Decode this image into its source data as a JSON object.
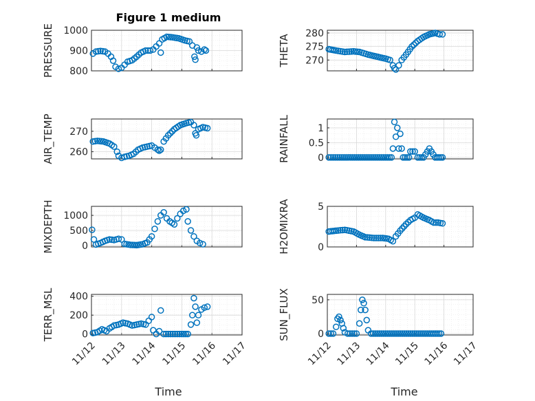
{
  "figure": {
    "title": "Figure 1 medium"
  },
  "x_tick_labels": [
    "11/12",
    "11/13",
    "11/14",
    "11/15",
    "11/16",
    "11/17"
  ],
  "x_label": "Time",
  "chart_data": [
    {
      "type": "scatter",
      "name": "PRESSURE",
      "ylabel": "PRESSURE",
      "ylim": [
        800,
        1000
      ],
      "yticks": [
        800,
        900,
        1000
      ],
      "yticklabels": [
        "800",
        "900",
        "1000"
      ],
      "xlim": [
        0,
        5
      ],
      "points": [
        [
          0.05,
          885
        ],
        [
          0.15,
          895
        ],
        [
          0.3,
          898
        ],
        [
          0.45,
          895
        ],
        [
          0.55,
          885
        ],
        [
          0.65,
          870
        ],
        [
          0.72,
          850
        ],
        [
          0.8,
          820
        ],
        [
          0.9,
          810
        ],
        [
          1.0,
          815
        ],
        [
          1.1,
          830
        ],
        [
          1.2,
          845
        ],
        [
          1.35,
          852
        ],
        [
          1.5,
          870
        ],
        [
          1.65,
          890
        ],
        [
          1.8,
          900
        ],
        [
          1.95,
          900
        ],
        [
          2.05,
          905
        ],
        [
          2.15,
          920
        ],
        [
          2.25,
          935
        ],
        [
          2.3,
          890
        ],
        [
          2.35,
          955
        ],
        [
          2.5,
          968
        ],
        [
          2.7,
          965
        ],
        [
          2.9,
          960
        ],
        [
          3.1,
          950
        ],
        [
          3.25,
          945
        ],
        [
          3.35,
          925
        ],
        [
          3.42,
          870
        ],
        [
          3.45,
          855
        ],
        [
          3.5,
          915
        ],
        [
          3.55,
          900
        ],
        [
          3.65,
          895
        ],
        [
          3.75,
          905
        ],
        [
          3.8,
          900
        ]
      ]
    },
    {
      "type": "scatter",
      "name": "THETA",
      "ylabel": "THETA",
      "ylim": [
        266,
        281
      ],
      "yticks": [
        270,
        275,
        280
      ],
      "yticklabels": [
        "270",
        "275",
        "280"
      ],
      "xlim": [
        0,
        5
      ],
      "points": [
        [
          0.05,
          274
        ],
        [
          0.3,
          273.5
        ],
        [
          0.6,
          273
        ],
        [
          0.9,
          273.2
        ],
        [
          1.1,
          273
        ],
        [
          1.25,
          272.5
        ],
        [
          1.4,
          272
        ],
        [
          1.6,
          271.5
        ],
        [
          1.8,
          271
        ],
        [
          2.0,
          270.5
        ],
        [
          2.15,
          270
        ],
        [
          2.25,
          268
        ],
        [
          2.3,
          267
        ],
        [
          2.35,
          266.5
        ],
        [
          2.45,
          268
        ],
        [
          2.55,
          270
        ],
        [
          2.7,
          272
        ],
        [
          2.9,
          275
        ],
        [
          3.1,
          277
        ],
        [
          3.3,
          278.5
        ],
        [
          3.5,
          279.5
        ],
        [
          3.7,
          280
        ],
        [
          3.85,
          279.5
        ],
        [
          3.95,
          279.5
        ]
      ]
    },
    {
      "type": "scatter",
      "name": "AIR_TEMP",
      "ylabel": "AIR_TEMP",
      "ylim": [
        256.5,
        276
      ],
      "yticks": [
        260,
        270
      ],
      "yticklabels": [
        "260",
        "270"
      ],
      "xlim": [
        0,
        5
      ],
      "points": [
        [
          0.05,
          265
        ],
        [
          0.2,
          265.3
        ],
        [
          0.4,
          265
        ],
        [
          0.6,
          264
        ],
        [
          0.75,
          262.5
        ],
        [
          0.85,
          260
        ],
        [
          0.9,
          258
        ],
        [
          1.0,
          257
        ],
        [
          1.1,
          257.5
        ],
        [
          1.25,
          258
        ],
        [
          1.4,
          259
        ],
        [
          1.55,
          261
        ],
        [
          1.7,
          262
        ],
        [
          1.85,
          262.5
        ],
        [
          2.0,
          263
        ],
        [
          2.1,
          262
        ],
        [
          2.2,
          261
        ],
        [
          2.25,
          260.5
        ],
        [
          2.3,
          261
        ],
        [
          2.4,
          265
        ],
        [
          2.55,
          268
        ],
        [
          2.75,
          271
        ],
        [
          2.95,
          273
        ],
        [
          3.15,
          274
        ],
        [
          3.3,
          274.5
        ],
        [
          3.4,
          273
        ],
        [
          3.45,
          269
        ],
        [
          3.48,
          268
        ],
        [
          3.55,
          271
        ],
        [
          3.7,
          272
        ],
        [
          3.85,
          271.5
        ]
      ]
    },
    {
      "type": "scatter",
      "name": "RAINFALL",
      "ylabel": "RAINFALL",
      "ylim": [
        -0.05,
        1.3
      ],
      "yticks": [
        0,
        0.5,
        1
      ],
      "yticklabels": [
        "0",
        "0.5",
        "1"
      ],
      "xlim": [
        0,
        5
      ],
      "points": [
        [
          0.05,
          0
        ],
        [
          0.5,
          0
        ],
        [
          1.0,
          0
        ],
        [
          1.5,
          0
        ],
        [
          2.0,
          0
        ],
        [
          2.2,
          0
        ],
        [
          2.25,
          0.3
        ],
        [
          2.3,
          1.2
        ],
        [
          2.35,
          0.7
        ],
        [
          2.4,
          1.0
        ],
        [
          2.45,
          0.3
        ],
        [
          2.5,
          0.8
        ],
        [
          2.55,
          0.3
        ],
        [
          2.6,
          0
        ],
        [
          2.8,
          0
        ],
        [
          2.85,
          0.2
        ],
        [
          3.0,
          0.2
        ],
        [
          3.1,
          0
        ],
        [
          3.3,
          0
        ],
        [
          3.5,
          0.3
        ],
        [
          3.7,
          0
        ],
        [
          3.95,
          0
        ]
      ]
    },
    {
      "type": "scatter",
      "name": "MIXDEPTH",
      "ylabel": "MIXDEPTH",
      "ylim": [
        -50,
        1300
      ],
      "yticks": [
        0,
        500,
        1000
      ],
      "yticklabels": [
        "0",
        "500",
        "1000"
      ],
      "xlim": [
        0,
        5
      ],
      "points": [
        [
          0.02,
          520
        ],
        [
          0.08,
          200
        ],
        [
          0.15,
          30
        ],
        [
          0.3,
          80
        ],
        [
          0.45,
          150
        ],
        [
          0.6,
          200
        ],
        [
          0.75,
          180
        ],
        [
          0.9,
          220
        ],
        [
          1.0,
          200
        ],
        [
          1.1,
          50
        ],
        [
          1.3,
          20
        ],
        [
          1.5,
          10
        ],
        [
          1.7,
          40
        ],
        [
          1.85,
          100
        ],
        [
          2.0,
          300
        ],
        [
          2.1,
          550
        ],
        [
          2.2,
          800
        ],
        [
          2.3,
          1000
        ],
        [
          2.4,
          1100
        ],
        [
          2.5,
          900
        ],
        [
          2.6,
          800
        ],
        [
          2.75,
          700
        ],
        [
          2.85,
          900
        ],
        [
          2.95,
          1050
        ],
        [
          3.05,
          1150
        ],
        [
          3.15,
          1200
        ],
        [
          3.2,
          800
        ],
        [
          3.3,
          500
        ],
        [
          3.4,
          300
        ],
        [
          3.5,
          150
        ],
        [
          3.6,
          80
        ],
        [
          3.7,
          40
        ]
      ]
    },
    {
      "type": "scatter",
      "name": "H2OMIXRA",
      "ylabel": "H2OMIXRA",
      "ylim": [
        0,
        5
      ],
      "yticks": [
        0,
        5
      ],
      "yticklabels": [
        "0",
        "5"
      ],
      "xlim": [
        0,
        5
      ],
      "points": [
        [
          0.05,
          1.9
        ],
        [
          0.3,
          2.0
        ],
        [
          0.6,
          2.1
        ],
        [
          0.9,
          1.9
        ],
        [
          1.1,
          1.5
        ],
        [
          1.3,
          1.2
        ],
        [
          1.6,
          1.1
        ],
        [
          1.9,
          1.1
        ],
        [
          2.1,
          1.0
        ],
        [
          2.25,
          0.7
        ],
        [
          2.35,
          1.3
        ],
        [
          2.5,
          2.0
        ],
        [
          2.7,
          2.8
        ],
        [
          2.85,
          3.3
        ],
        [
          3.0,
          3.6
        ],
        [
          3.1,
          4.0
        ],
        [
          3.3,
          3.6
        ],
        [
          3.5,
          3.3
        ],
        [
          3.65,
          3.0
        ],
        [
          3.8,
          3.0
        ],
        [
          3.95,
          2.9
        ]
      ]
    },
    {
      "type": "scatter",
      "name": "TERR_MSL",
      "ylabel": "TERR_MSL",
      "ylim": [
        -10,
        420
      ],
      "yticks": [
        0,
        200,
        400
      ],
      "yticklabels": [
        "0",
        "200",
        "400"
      ],
      "xlim": [
        0,
        5
      ],
      "points": [
        [
          0.05,
          10
        ],
        [
          0.2,
          20
        ],
        [
          0.35,
          50
        ],
        [
          0.5,
          30
        ],
        [
          0.6,
          60
        ],
        [
          0.75,
          90
        ],
        [
          0.9,
          100
        ],
        [
          1.05,
          120
        ],
        [
          1.2,
          110
        ],
        [
          1.35,
          90
        ],
        [
          1.5,
          100
        ],
        [
          1.65,
          110
        ],
        [
          1.8,
          100
        ],
        [
          1.9,
          140
        ],
        [
          2.0,
          180
        ],
        [
          2.05,
          40
        ],
        [
          2.15,
          0
        ],
        [
          2.25,
          30
        ],
        [
          2.3,
          250
        ],
        [
          2.4,
          0
        ],
        [
          2.7,
          0
        ],
        [
          3.0,
          0
        ],
        [
          3.2,
          0
        ],
        [
          3.3,
          100
        ],
        [
          3.35,
          200
        ],
        [
          3.4,
          380
        ],
        [
          3.45,
          290
        ],
        [
          3.5,
          120
        ],
        [
          3.55,
          200
        ],
        [
          3.65,
          260
        ],
        [
          3.75,
          280
        ],
        [
          3.85,
          290
        ]
      ]
    },
    {
      "type": "scatter",
      "name": "SUN_FLUX",
      "ylabel": "SUN_FLUX",
      "ylim": [
        -2,
        58
      ],
      "yticks": [
        0,
        50
      ],
      "yticklabels": [
        "0",
        "50"
      ],
      "xlim": [
        0,
        5
      ],
      "points": [
        [
          0.05,
          0
        ],
        [
          0.2,
          0
        ],
        [
          0.3,
          10
        ],
        [
          0.35,
          22
        ],
        [
          0.4,
          25
        ],
        [
          0.45,
          20
        ],
        [
          0.5,
          15
        ],
        [
          0.55,
          8
        ],
        [
          0.6,
          2
        ],
        [
          0.7,
          0
        ],
        [
          1.0,
          0
        ],
        [
          1.1,
          15
        ],
        [
          1.15,
          35
        ],
        [
          1.2,
          50
        ],
        [
          1.25,
          45
        ],
        [
          1.3,
          35
        ],
        [
          1.35,
          20
        ],
        [
          1.4,
          5
        ],
        [
          1.5,
          0
        ],
        [
          2.0,
          0
        ],
        [
          2.5,
          0
        ],
        [
          3.0,
          0
        ],
        [
          3.5,
          0
        ],
        [
          3.9,
          0
        ]
      ]
    }
  ],
  "colors": {
    "marker": "#0072BD",
    "axes": "#262626"
  },
  "grid": true,
  "minor_grid": true
}
